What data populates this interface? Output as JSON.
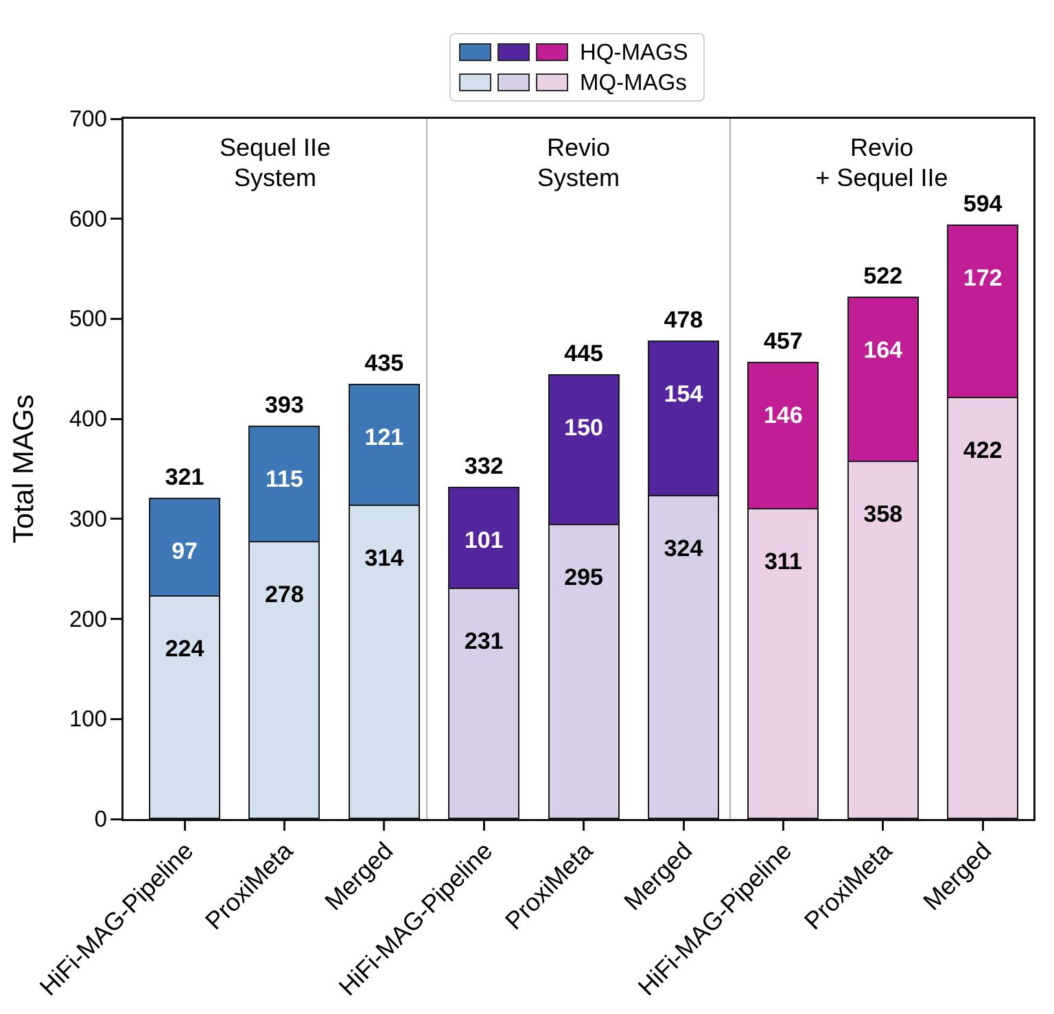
{
  "legend": {
    "rows": [
      {
        "label": "HQ-MAGS",
        "colors": [
          "#3d77b5",
          "#54269e",
          "#c11d95"
        ]
      },
      {
        "label": "MQ-MAGs",
        "colors": [
          "#d3e1ee",
          "#d6cfe7",
          "#ebd1e5"
        ]
      }
    ]
  },
  "chart_data": {
    "type": "bar",
    "stacked": true,
    "title": "",
    "xlabel": "",
    "ylabel": "Total MAGs",
    "ylim": [
      0,
      700
    ],
    "yticks": [
      0,
      100,
      200,
      300,
      400,
      500,
      600,
      700
    ],
    "grid": false,
    "legend_position": "top",
    "categories": [
      "HiFi-MAG-Pipeline",
      "ProxiMeta",
      "Merged"
    ],
    "series_names": [
      "MQ-MAGs",
      "HQ-MAGS"
    ],
    "panels": [
      {
        "title_lines": [
          "Sequel IIe",
          "System"
        ],
        "hq_color": "#3d77b5",
        "mq_color": "#d3e1ee",
        "bars": [
          {
            "category": "HiFi-MAG-Pipeline",
            "mq": 224,
            "hq": 97,
            "total": 321
          },
          {
            "category": "ProxiMeta",
            "mq": 278,
            "hq": 115,
            "total": 393
          },
          {
            "category": "Merged",
            "mq": 314,
            "hq": 121,
            "total": 435
          }
        ]
      },
      {
        "title_lines": [
          "Revio",
          "System"
        ],
        "hq_color": "#54269e",
        "mq_color": "#d6cfe7",
        "bars": [
          {
            "category": "HiFi-MAG-Pipeline",
            "mq": 231,
            "hq": 101,
            "total": 332
          },
          {
            "category": "ProxiMeta",
            "mq": 295,
            "hq": 150,
            "total": 445
          },
          {
            "category": "Merged",
            "mq": 324,
            "hq": 154,
            "total": 478
          }
        ]
      },
      {
        "title_lines": [
          "Revio",
          "+ Sequel IIe"
        ],
        "hq_color": "#c11d95",
        "mq_color": "#ebd1e5",
        "bars": [
          {
            "category": "HiFi-MAG-Pipeline",
            "mq": 311,
            "hq": 146,
            "total": 457
          },
          {
            "category": "ProxiMeta",
            "mq": 358,
            "hq": 164,
            "total": 522
          },
          {
            "category": "Merged",
            "mq": 422,
            "hq": 172,
            "total": 594
          }
        ]
      }
    ]
  }
}
